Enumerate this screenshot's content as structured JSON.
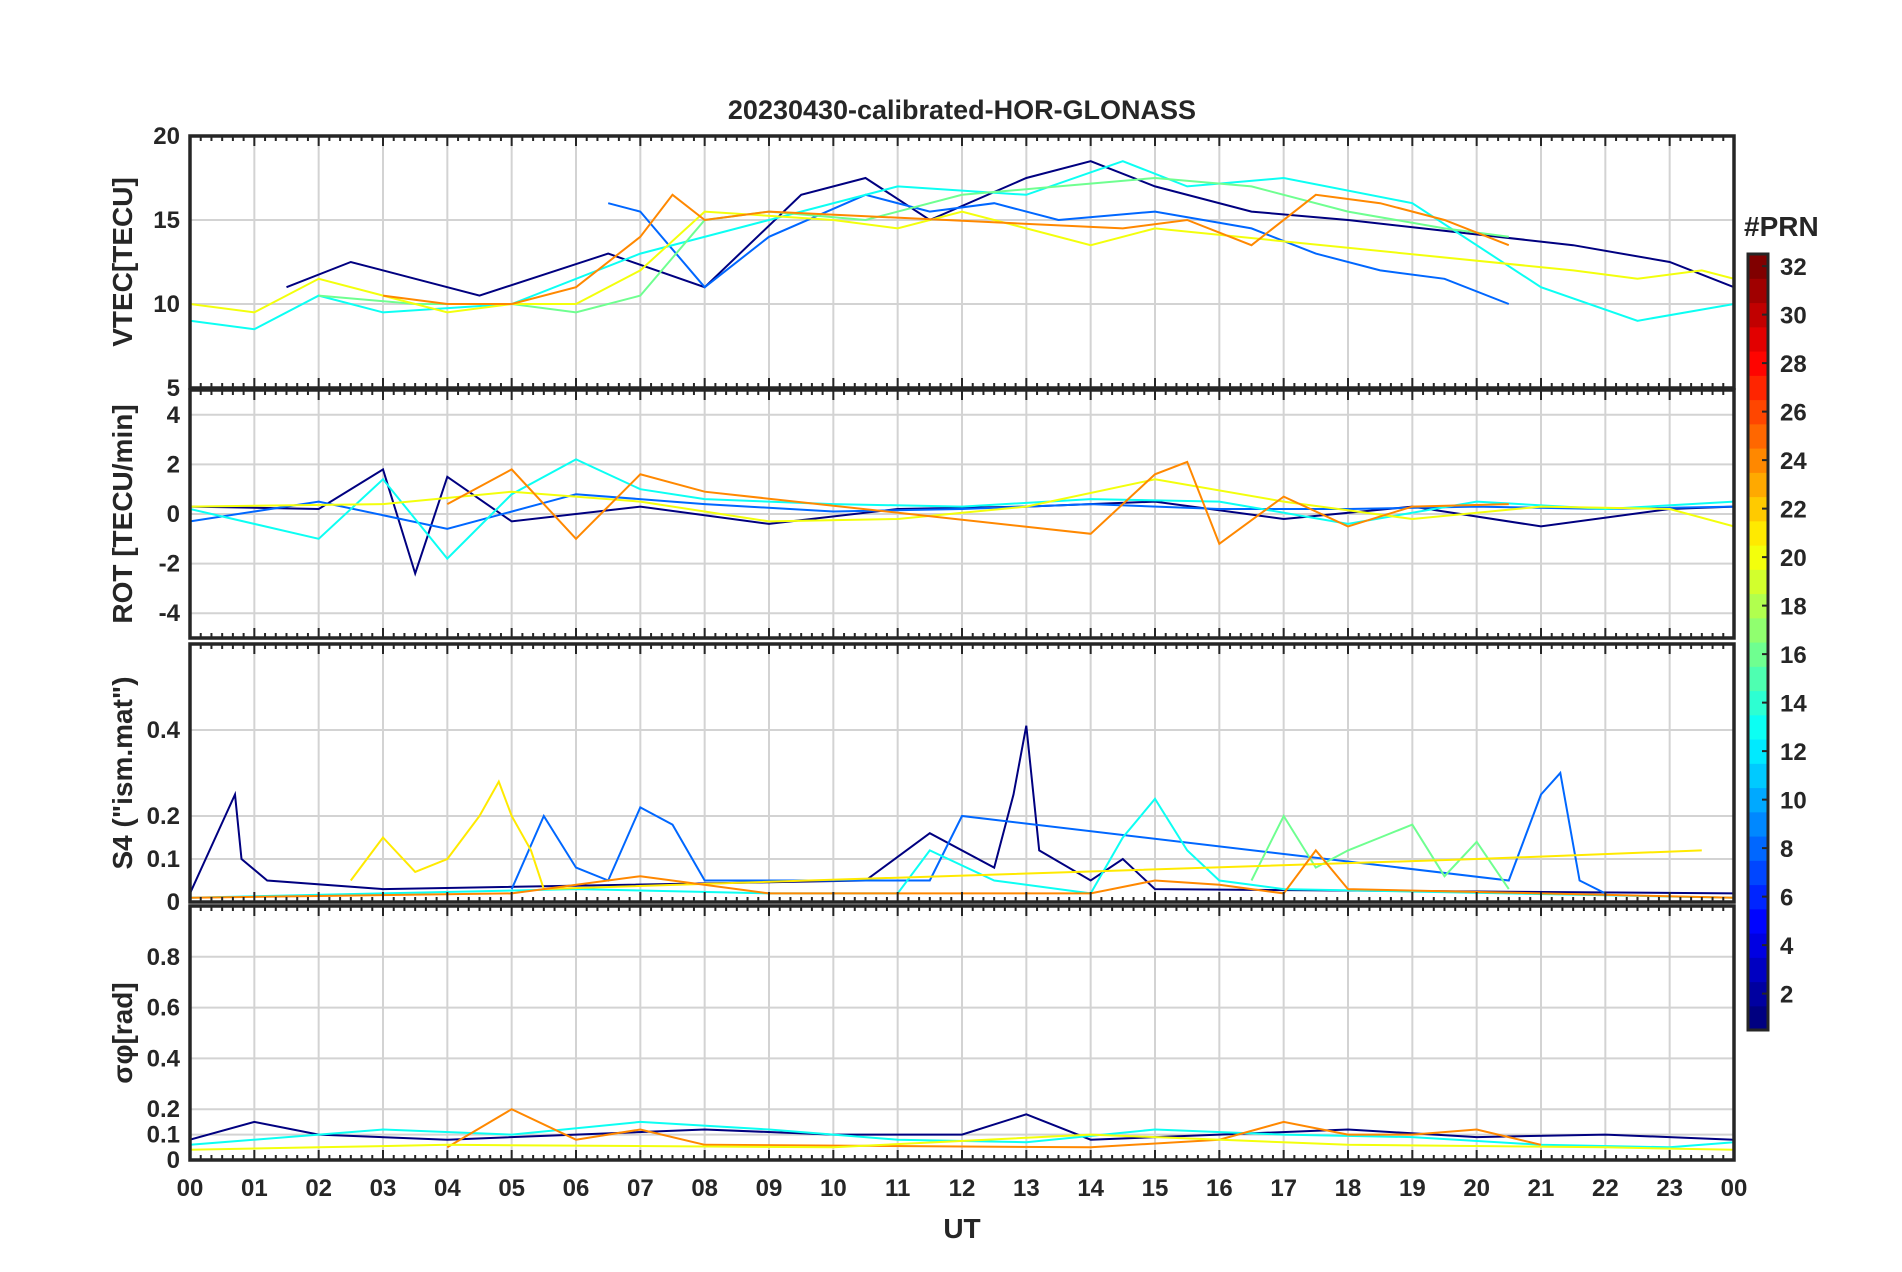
{
  "chart_data": {
    "type": "line",
    "title": "20230430-calibrated-HOR-GLONASS",
    "xlabel": "UT",
    "x_ticks": [
      "00",
      "01",
      "02",
      "03",
      "04",
      "05",
      "06",
      "07",
      "08",
      "09",
      "10",
      "11",
      "12",
      "13",
      "14",
      "15",
      "16",
      "17",
      "18",
      "19",
      "20",
      "21",
      "22",
      "23",
      "00"
    ],
    "xlim": [
      0,
      24
    ],
    "colorbar": {
      "label": "#PRN",
      "range": [
        1,
        32
      ],
      "ticks": [
        "2",
        "4",
        "6",
        "8",
        "10",
        "12",
        "14",
        "16",
        "18",
        "20",
        "22",
        "24",
        "26",
        "28",
        "30",
        "32"
      ],
      "colormap": "jet"
    },
    "panels": [
      {
        "name": "VTEC",
        "ylabel": "VTEC[TECU]",
        "ylim": [
          5,
          20
        ],
        "yticks": [
          "5",
          "10",
          "15",
          "20"
        ],
        "series": [
          {
            "prn": 1,
            "x": [
              1.5,
              2.5,
              3.5,
              4.5,
              6.5,
              8.0,
              9.5,
              10.5,
              11.5,
              13.0,
              14.0,
              15.0,
              16.5,
              18.0,
              21.5,
              23.0,
              24.0
            ],
            "y": [
              11.0,
              12.5,
              11.5,
              10.5,
              13.0,
              11.0,
              16.5,
              17.5,
              15.0,
              17.5,
              18.5,
              17.0,
              15.5,
              15.0,
              13.5,
              12.5,
              11.0
            ]
          },
          {
            "prn": 8,
            "x": [
              6.5,
              7.0,
              8.0,
              9.0,
              10.5,
              11.5,
              12.5,
              13.5,
              15.0,
              16.5,
              17.5,
              18.5,
              19.5,
              20.5
            ],
            "y": [
              16.0,
              15.5,
              11.0,
              14.0,
              16.5,
              15.5,
              16.0,
              15.0,
              15.5,
              14.5,
              13.0,
              12.0,
              11.5,
              10.0
            ]
          },
          {
            "prn": 13,
            "x": [
              0.0,
              1.0,
              2.0,
              3.0,
              5.0,
              7.0,
              9.0,
              11.0,
              13.0,
              14.5,
              15.5,
              17.0,
              19.0,
              21.0,
              22.5,
              24.0
            ],
            "y": [
              9.0,
              8.5,
              10.5,
              9.5,
              10.0,
              13.0,
              15.0,
              17.0,
              16.5,
              18.5,
              17.0,
              17.5,
              16.0,
              11.0,
              9.0,
              10.0
            ]
          },
          {
            "prn": 16,
            "x": [
              2.0,
              3.5,
              5.0,
              6.0,
              7.0,
              8.0,
              9.0,
              10.5,
              12.0,
              13.5,
              15.0,
              16.5,
              18.0,
              19.5,
              20.5
            ],
            "y": [
              10.5,
              10.0,
              10.0,
              9.5,
              10.5,
              15.0,
              15.5,
              15.0,
              16.5,
              17.0,
              17.5,
              17.0,
              15.5,
              14.5,
              14.0
            ]
          },
          {
            "prn": 20,
            "x": [
              0.0,
              1.0,
              2.0,
              3.0,
              4.0,
              5.0,
              6.0,
              7.0,
              8.0,
              10.0,
              11.0,
              12.0,
              14.0,
              15.0,
              21.5,
              22.5,
              23.5,
              24.0
            ],
            "y": [
              10.0,
              9.5,
              11.5,
              10.5,
              9.5,
              10.0,
              10.0,
              12.0,
              15.5,
              15.0,
              14.5,
              15.5,
              13.5,
              14.5,
              12.0,
              11.5,
              12.0,
              11.5
            ]
          },
          {
            "prn": 24,
            "x": [
              3.0,
              4.0,
              5.0,
              6.0,
              7.0,
              7.5,
              8.0,
              9.0,
              14.5,
              15.5,
              16.5,
              17.5,
              18.5,
              19.5,
              20.5
            ],
            "y": [
              10.5,
              10.0,
              10.0,
              11.0,
              14.0,
              16.5,
              15.0,
              15.5,
              14.5,
              15.0,
              13.5,
              16.5,
              16.0,
              15.0,
              13.5
            ]
          }
        ]
      },
      {
        "name": "ROT",
        "ylabel": "ROT [TECU/min]",
        "ylim": [
          -5,
          5
        ],
        "yticks": [
          "-4",
          "-2",
          "0",
          "2",
          "4"
        ],
        "series": [
          {
            "prn": 1,
            "x": [
              0,
              2,
              3,
              3.5,
              4,
              5,
              7,
              9,
              11,
              13,
              15,
              17,
              19,
              21,
              23,
              24
            ],
            "y": [
              0.3,
              0.2,
              1.8,
              -2.4,
              1.5,
              -0.3,
              0.3,
              -0.4,
              0.2,
              0.3,
              0.5,
              -0.2,
              0.3,
              -0.5,
              0.2,
              0.3
            ]
          },
          {
            "prn": 8,
            "x": [
              0,
              2,
              4,
              6,
              8,
              10,
              12,
              14,
              16,
              18,
              20,
              22,
              24
            ],
            "y": [
              -0.3,
              0.5,
              -0.6,
              0.8,
              0.4,
              0.1,
              0.2,
              0.4,
              0.2,
              0.2,
              0.3,
              0.2,
              0.3
            ]
          },
          {
            "prn": 13,
            "x": [
              0,
              2,
              3,
              4,
              5,
              6,
              7,
              8,
              10,
              12,
              14,
              16,
              18,
              20,
              22,
              24
            ],
            "y": [
              0.2,
              -1.0,
              1.4,
              -1.8,
              0.8,
              2.2,
              1.0,
              0.6,
              0.4,
              0.3,
              0.6,
              0.5,
              -0.4,
              0.5,
              0.2,
              0.5
            ]
          },
          {
            "prn": 20,
            "x": [
              0,
              3,
              5,
              7,
              9,
              11,
              13,
              15,
              17,
              19,
              21,
              23,
              24
            ],
            "y": [
              0.3,
              0.4,
              0.9,
              0.5,
              -0.3,
              -0.2,
              0.3,
              1.4,
              0.5,
              -0.2,
              0.3,
              0.2,
              -0.5
            ]
          },
          {
            "prn": 24,
            "x": [
              4,
              5,
              6,
              7,
              8,
              14,
              15,
              15.5,
              16,
              17,
              18,
              19,
              20.5
            ],
            "y": [
              0.4,
              1.8,
              -1.0,
              1.6,
              0.9,
              -0.8,
              1.6,
              2.1,
              -1.2,
              0.7,
              -0.5,
              0.3,
              0.4
            ]
          }
        ]
      },
      {
        "name": "S4",
        "ylabel": "S4 (\"ism.mat\")",
        "ylim": [
          0,
          0.6
        ],
        "yticks": [
          "0",
          "0.1",
          "0.2",
          "0.4"
        ],
        "series": [
          {
            "prn": 1,
            "x": [
              0.0,
              0.7,
              0.8,
              1.2,
              3.0,
              10.5,
              11.5,
              12.5,
              12.8,
              13.0,
              13.2,
              14.0,
              14.5,
              15.0,
              24.0
            ],
            "y": [
              0.02,
              0.25,
              0.1,
              0.05,
              0.03,
              0.05,
              0.16,
              0.08,
              0.25,
              0.41,
              0.12,
              0.05,
              0.1,
              0.03,
              0.02
            ]
          },
          {
            "prn": 8,
            "x": [
              5.0,
              5.5,
              6.0,
              6.5,
              7.0,
              7.5,
              8.0,
              11.5,
              12.0,
              20.5,
              21.0,
              21.3,
              21.6,
              22.0
            ],
            "y": [
              0.03,
              0.2,
              0.08,
              0.05,
              0.22,
              0.18,
              0.05,
              0.05,
              0.2,
              0.05,
              0.25,
              0.3,
              0.05,
              0.02
            ]
          },
          {
            "prn": 13,
            "x": [
              0,
              3,
              6,
              9,
              11.0,
              11.5,
              12.5,
              14.0,
              14.5,
              15.0,
              15.5,
              16.0,
              17.0,
              24.0
            ],
            "y": [
              0.01,
              0.02,
              0.03,
              0.02,
              0.02,
              0.12,
              0.05,
              0.02,
              0.15,
              0.24,
              0.12,
              0.05,
              0.03,
              0.01
            ]
          },
          {
            "prn": 16,
            "x": [
              16.5,
              17.0,
              17.5,
              18.0,
              18.5,
              19.0,
              19.5,
              20.0,
              20.5
            ],
            "y": [
              0.05,
              0.2,
              0.08,
              0.12,
              0.15,
              0.18,
              0.06,
              0.14,
              0.03
            ]
          },
          {
            "prn": 21,
            "x": [
              2.5,
              3.0,
              3.5,
              4.0,
              4.5,
              4.8,
              5.0,
              5.3,
              5.5,
              20.0,
              23.5
            ],
            "y": [
              0.05,
              0.15,
              0.07,
              0.1,
              0.2,
              0.28,
              0.2,
              0.12,
              0.03,
              0.1,
              0.12
            ]
          },
          {
            "prn": 24,
            "x": [
              0,
              5,
              7,
              9,
              14,
              15,
              16,
              17,
              17.5,
              18,
              24
            ],
            "y": [
              0.01,
              0.02,
              0.06,
              0.02,
              0.02,
              0.05,
              0.04,
              0.02,
              0.12,
              0.03,
              0.01
            ]
          }
        ]
      },
      {
        "name": "SigmaPhi",
        "ylabel": "σφ[rad]",
        "ylim": [
          0,
          1
        ],
        "yticks": [
          "0",
          "0.1",
          "0.2",
          "0.4",
          "0.6",
          "0.8"
        ],
        "series": [
          {
            "prn": 1,
            "x": [
              0,
              1,
              2,
              4,
              6,
              8,
              10,
              12,
              13,
              14,
              16,
              18,
              20,
              22,
              24
            ],
            "y": [
              0.08,
              0.15,
              0.1,
              0.08,
              0.1,
              0.12,
              0.1,
              0.1,
              0.18,
              0.08,
              0.1,
              0.12,
              0.09,
              0.1,
              0.08
            ]
          },
          {
            "prn": 13,
            "x": [
              0,
              3,
              5,
              7,
              9,
              11,
              13,
              15,
              17,
              19,
              21,
              23,
              24
            ],
            "y": [
              0.06,
              0.12,
              0.1,
              0.15,
              0.12,
              0.08,
              0.07,
              0.12,
              0.1,
              0.09,
              0.06,
              0.05,
              0.07
            ]
          },
          {
            "prn": 24,
            "x": [
              4,
              5,
              6,
              7,
              8,
              14,
              16,
              17,
              18,
              19,
              20,
              21
            ],
            "y": [
              0.05,
              0.2,
              0.08,
              0.12,
              0.06,
              0.05,
              0.08,
              0.15,
              0.1,
              0.1,
              0.12,
              0.06
            ]
          },
          {
            "prn": 20,
            "x": [
              0,
              2,
              4,
              10,
              14,
              18,
              22,
              24
            ],
            "y": [
              0.04,
              0.05,
              0.06,
              0.05,
              0.1,
              0.06,
              0.05,
              0.04
            ]
          }
        ]
      }
    ]
  }
}
